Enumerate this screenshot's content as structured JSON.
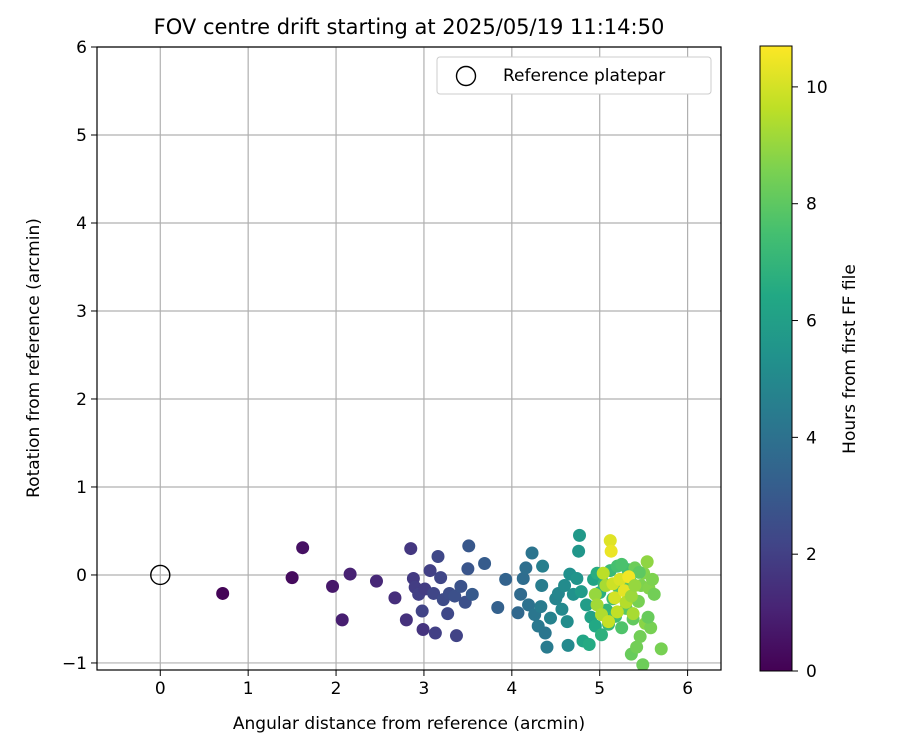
{
  "chart_data": {
    "type": "scatter",
    "title": "FOV centre drift starting at 2025/05/19 11:14:50",
    "xlabel": "Angular distance from reference (arcmin)",
    "ylabel": "Rotation from reference (arcmin)",
    "xlim": [
      -0.72,
      6.38
    ],
    "ylim": [
      -1.08,
      6.0
    ],
    "xticks": [
      0,
      1,
      2,
      3,
      4,
      5,
      6
    ],
    "yticks": [
      -1,
      0,
      1,
      2,
      3,
      4,
      5,
      6
    ],
    "grid": true,
    "legend": {
      "position": "top-right",
      "label": "Reference platepar",
      "marker": "open-circle"
    },
    "reference_point": {
      "x": 0,
      "y": 0
    },
    "colorbar": {
      "label": "Hours from first FF file",
      "colormap": "viridis",
      "range": [
        0,
        10.7
      ],
      "ticks": [
        0,
        2,
        4,
        6,
        8,
        10
      ]
    },
    "points": [
      {
        "x": 0.71,
        "y": -0.21,
        "c": 0.1
      },
      {
        "x": 1.5,
        "y": -0.03,
        "c": 0.3
      },
      {
        "x": 1.62,
        "y": 0.31,
        "c": 0.5
      },
      {
        "x": 1.96,
        "y": -0.13,
        "c": 0.7
      },
      {
        "x": 2.07,
        "y": -0.51,
        "c": 0.9
      },
      {
        "x": 2.16,
        "y": 0.01,
        "c": 1.0
      },
      {
        "x": 2.46,
        "y": -0.07,
        "c": 1.2
      },
      {
        "x": 2.67,
        "y": -0.26,
        "c": 1.4
      },
      {
        "x": 2.8,
        "y": -0.51,
        "c": 1.5
      },
      {
        "x": 2.85,
        "y": 0.3,
        "c": 1.7
      },
      {
        "x": 2.88,
        "y": -0.04,
        "c": 1.8
      },
      {
        "x": 2.9,
        "y": -0.14,
        "c": 1.9
      },
      {
        "x": 2.94,
        "y": -0.22,
        "c": 2.0
      },
      {
        "x": 2.99,
        "y": -0.62,
        "c": 1.6
      },
      {
        "x": 2.98,
        "y": -0.41,
        "c": 2.1
      },
      {
        "x": 3.01,
        "y": -0.16,
        "c": 1.9
      },
      {
        "x": 3.07,
        "y": 0.05,
        "c": 2.0
      },
      {
        "x": 3.11,
        "y": -0.21,
        "c": 2.2
      },
      {
        "x": 3.13,
        "y": -0.66,
        "c": 2.0
      },
      {
        "x": 3.16,
        "y": 0.21,
        "c": 2.3
      },
      {
        "x": 3.19,
        "y": -0.03,
        "c": 2.2
      },
      {
        "x": 3.22,
        "y": -0.28,
        "c": 2.4
      },
      {
        "x": 3.27,
        "y": -0.44,
        "c": 2.3
      },
      {
        "x": 3.29,
        "y": -0.21,
        "c": 2.5
      },
      {
        "x": 3.35,
        "y": -0.24,
        "c": 2.6
      },
      {
        "x": 3.37,
        "y": -0.69,
        "c": 2.1
      },
      {
        "x": 3.42,
        "y": -0.13,
        "c": 2.7
      },
      {
        "x": 3.47,
        "y": -0.31,
        "c": 2.6
      },
      {
        "x": 3.5,
        "y": 0.07,
        "c": 2.8
      },
      {
        "x": 3.51,
        "y": 0.33,
        "c": 2.9
      },
      {
        "x": 3.55,
        "y": -0.22,
        "c": 3.0
      },
      {
        "x": 3.69,
        "y": 0.13,
        "c": 3.1
      },
      {
        "x": 3.84,
        "y": -0.37,
        "c": 3.3
      },
      {
        "x": 3.93,
        "y": -0.05,
        "c": 3.4
      },
      {
        "x": 4.07,
        "y": -0.43,
        "c": 3.6
      },
      {
        "x": 4.1,
        "y": -0.22,
        "c": 3.7
      },
      {
        "x": 4.13,
        "y": -0.04,
        "c": 3.8
      },
      {
        "x": 4.16,
        "y": 0.08,
        "c": 3.9
      },
      {
        "x": 4.19,
        "y": -0.34,
        "c": 4.0
      },
      {
        "x": 4.23,
        "y": 0.25,
        "c": 4.1
      },
      {
        "x": 4.26,
        "y": -0.45,
        "c": 4.2
      },
      {
        "x": 4.3,
        "y": -0.58,
        "c": 4.3
      },
      {
        "x": 4.33,
        "y": -0.36,
        "c": 4.4
      },
      {
        "x": 4.34,
        "y": -0.12,
        "c": 4.5
      },
      {
        "x": 4.35,
        "y": 0.1,
        "c": 4.6
      },
      {
        "x": 4.38,
        "y": -0.66,
        "c": 4.2
      },
      {
        "x": 4.4,
        "y": -0.82,
        "c": 4.4
      },
      {
        "x": 4.44,
        "y": -0.49,
        "c": 4.7
      },
      {
        "x": 4.5,
        "y": -0.27,
        "c": 4.8
      },
      {
        "x": 4.53,
        "y": -0.21,
        "c": 4.9
      },
      {
        "x": 4.57,
        "y": -0.39,
        "c": 5.0
      },
      {
        "x": 4.6,
        "y": -0.12,
        "c": 5.1
      },
      {
        "x": 4.63,
        "y": -0.53,
        "c": 5.2
      },
      {
        "x": 4.64,
        "y": -0.8,
        "c": 5.0
      },
      {
        "x": 4.66,
        "y": 0.01,
        "c": 5.3
      },
      {
        "x": 4.7,
        "y": -0.22,
        "c": 5.4
      },
      {
        "x": 4.74,
        "y": -0.04,
        "c": 5.5
      },
      {
        "x": 4.76,
        "y": 0.27,
        "c": 5.6
      },
      {
        "x": 4.77,
        "y": 0.45,
        "c": 5.7
      },
      {
        "x": 4.79,
        "y": -0.19,
        "c": 5.8
      },
      {
        "x": 4.81,
        "y": -0.75,
        "c": 6.3
      },
      {
        "x": 4.85,
        "y": -0.34,
        "c": 5.9
      },
      {
        "x": 4.88,
        "y": -0.79,
        "c": 6.5
      },
      {
        "x": 4.9,
        "y": -0.48,
        "c": 6.1
      },
      {
        "x": 4.93,
        "y": -0.05,
        "c": 6.2
      },
      {
        "x": 4.95,
        "y": -0.58,
        "c": 6.4
      },
      {
        "x": 4.97,
        "y": 0.02,
        "c": 6.6
      },
      {
        "x": 5.0,
        "y": -0.2,
        "c": 6.7
      },
      {
        "x": 5.02,
        "y": -0.68,
        "c": 6.8
      },
      {
        "x": 5.05,
        "y": -0.1,
        "c": 6.9
      },
      {
        "x": 5.08,
        "y": -0.4,
        "c": 7.0
      },
      {
        "x": 5.1,
        "y": -0.56,
        "c": 7.1
      },
      {
        "x": 5.12,
        "y": 0.05,
        "c": 7.2
      },
      {
        "x": 5.15,
        "y": -0.27,
        "c": 7.3
      },
      {
        "x": 5.18,
        "y": -0.47,
        "c": 7.4
      },
      {
        "x": 5.2,
        "y": 0.1,
        "c": 7.5
      },
      {
        "x": 5.22,
        "y": -0.15,
        "c": 7.6
      },
      {
        "x": 5.25,
        "y": -0.6,
        "c": 7.7
      },
      {
        "x": 5.28,
        "y": -0.05,
        "c": 7.8
      },
      {
        "x": 5.3,
        "y": -0.38,
        "c": 7.9
      },
      {
        "x": 5.32,
        "y": 0.06,
        "c": 7.4
      },
      {
        "x": 5.34,
        "y": -0.22,
        "c": 8.0
      },
      {
        "x": 5.36,
        "y": -0.9,
        "c": 8.2
      },
      {
        "x": 5.38,
        "y": -0.5,
        "c": 8.1
      },
      {
        "x": 5.4,
        "y": 0.08,
        "c": 8.3
      },
      {
        "x": 5.42,
        "y": -0.82,
        "c": 8.4
      },
      {
        "x": 5.44,
        "y": -0.3,
        "c": 8.5
      },
      {
        "x": 5.46,
        "y": -0.7,
        "c": 8.4
      },
      {
        "x": 5.47,
        "y": -0.12,
        "c": 8.6
      },
      {
        "x": 5.49,
        "y": -1.02,
        "c": 8.3
      },
      {
        "x": 5.5,
        "y": 0.02,
        "c": 8.7
      },
      {
        "x": 5.52,
        "y": -0.55,
        "c": 8.8
      },
      {
        "x": 5.54,
        "y": 0.15,
        "c": 8.9
      },
      {
        "x": 5.56,
        "y": -0.15,
        "c": 8.7
      },
      {
        "x": 5.58,
        "y": -0.6,
        "c": 8.5
      },
      {
        "x": 5.6,
        "y": -0.05,
        "c": 8.6
      },
      {
        "x": 5.62,
        "y": -0.22,
        "c": 8.4
      },
      {
        "x": 5.7,
        "y": -0.84,
        "c": 8.5
      },
      {
        "x": 5.55,
        "y": -0.48,
        "c": 8.2
      },
      {
        "x": 5.45,
        "y": 0.03,
        "c": 8.0
      },
      {
        "x": 5.35,
        "y": -0.08,
        "c": 7.9
      },
      {
        "x": 5.25,
        "y": 0.12,
        "c": 7.6
      },
      {
        "x": 4.95,
        "y": -0.22,
        "c": 9.0
      },
      {
        "x": 4.97,
        "y": -0.34,
        "c": 9.2
      },
      {
        "x": 5.02,
        "y": -0.45,
        "c": 9.4
      },
      {
        "x": 5.04,
        "y": 0.02,
        "c": 9.6
      },
      {
        "x": 5.07,
        "y": -0.12,
        "c": 9.3
      },
      {
        "x": 5.1,
        "y": -0.53,
        "c": 9.8
      },
      {
        "x": 5.12,
        "y": 0.39,
        "c": 10.2
      },
      {
        "x": 5.13,
        "y": 0.27,
        "c": 10.4
      },
      {
        "x": 5.15,
        "y": -0.1,
        "c": 9.9
      },
      {
        "x": 5.17,
        "y": -0.26,
        "c": 10.0
      },
      {
        "x": 5.2,
        "y": -0.42,
        "c": 9.7
      },
      {
        "x": 5.23,
        "y": -0.05,
        "c": 10.1
      },
      {
        "x": 5.28,
        "y": -0.18,
        "c": 10.3
      },
      {
        "x": 5.3,
        "y": -0.31,
        "c": 9.5
      },
      {
        "x": 5.33,
        "y": -0.02,
        "c": 10.5
      },
      {
        "x": 5.36,
        "y": -0.24,
        "c": 9.1
      },
      {
        "x": 5.38,
        "y": -0.44,
        "c": 9.3
      },
      {
        "x": 5.4,
        "y": -0.12,
        "c": 9.0
      }
    ]
  }
}
